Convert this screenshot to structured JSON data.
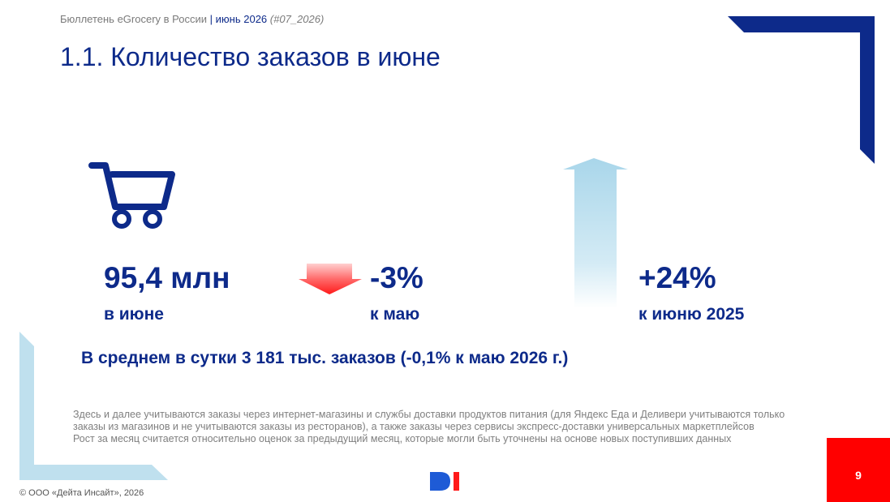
{
  "header": {
    "bulletin": "Бюллетень eGrocery в России",
    "separator": "|",
    "period": "июнь 2026",
    "code": "(#07_2026)"
  },
  "title": "1.1. Количество заказов в июне",
  "metrics": {
    "total": {
      "value": "95,4 млн",
      "label": "в июне",
      "icon": "shopping-cart-icon"
    },
    "mom": {
      "value": "-3%",
      "label": "к маю",
      "icon": "arrow-down-icon",
      "direction": "down"
    },
    "yoy": {
      "value": "+24%",
      "label": "к июню 2025",
      "icon": "arrow-up-icon",
      "direction": "up"
    }
  },
  "average": "В среднем в сутки 3 181 тыс. заказов (-0,1% к маю 2026 г.)",
  "notes": [
    "Здесь и далее учитываются заказы через интернет-магазины и службы доставки продуктов питания (для Яндекс Еда и Деливери учитываются только заказы из магазинов и не учитываются заказы из ресторанов), а также заказы через сервисы экспресс-доставки универсальных маркетплейсов",
    "Рост за месяц считается относительно оценок за предыдущий месяц, которые могли быть уточнены на основе новых поступивших данных"
  ],
  "copyright": "© ООО «Дейта Инсайт», 2026",
  "page_number": "9",
  "logo": "DI",
  "colors": {
    "primary": "#0d2a8a",
    "accent_red": "#ff0000",
    "light_blue": "#bfe0ee",
    "logo_blue": "#1e5bd6",
    "logo_red": "#ff1a1a"
  }
}
